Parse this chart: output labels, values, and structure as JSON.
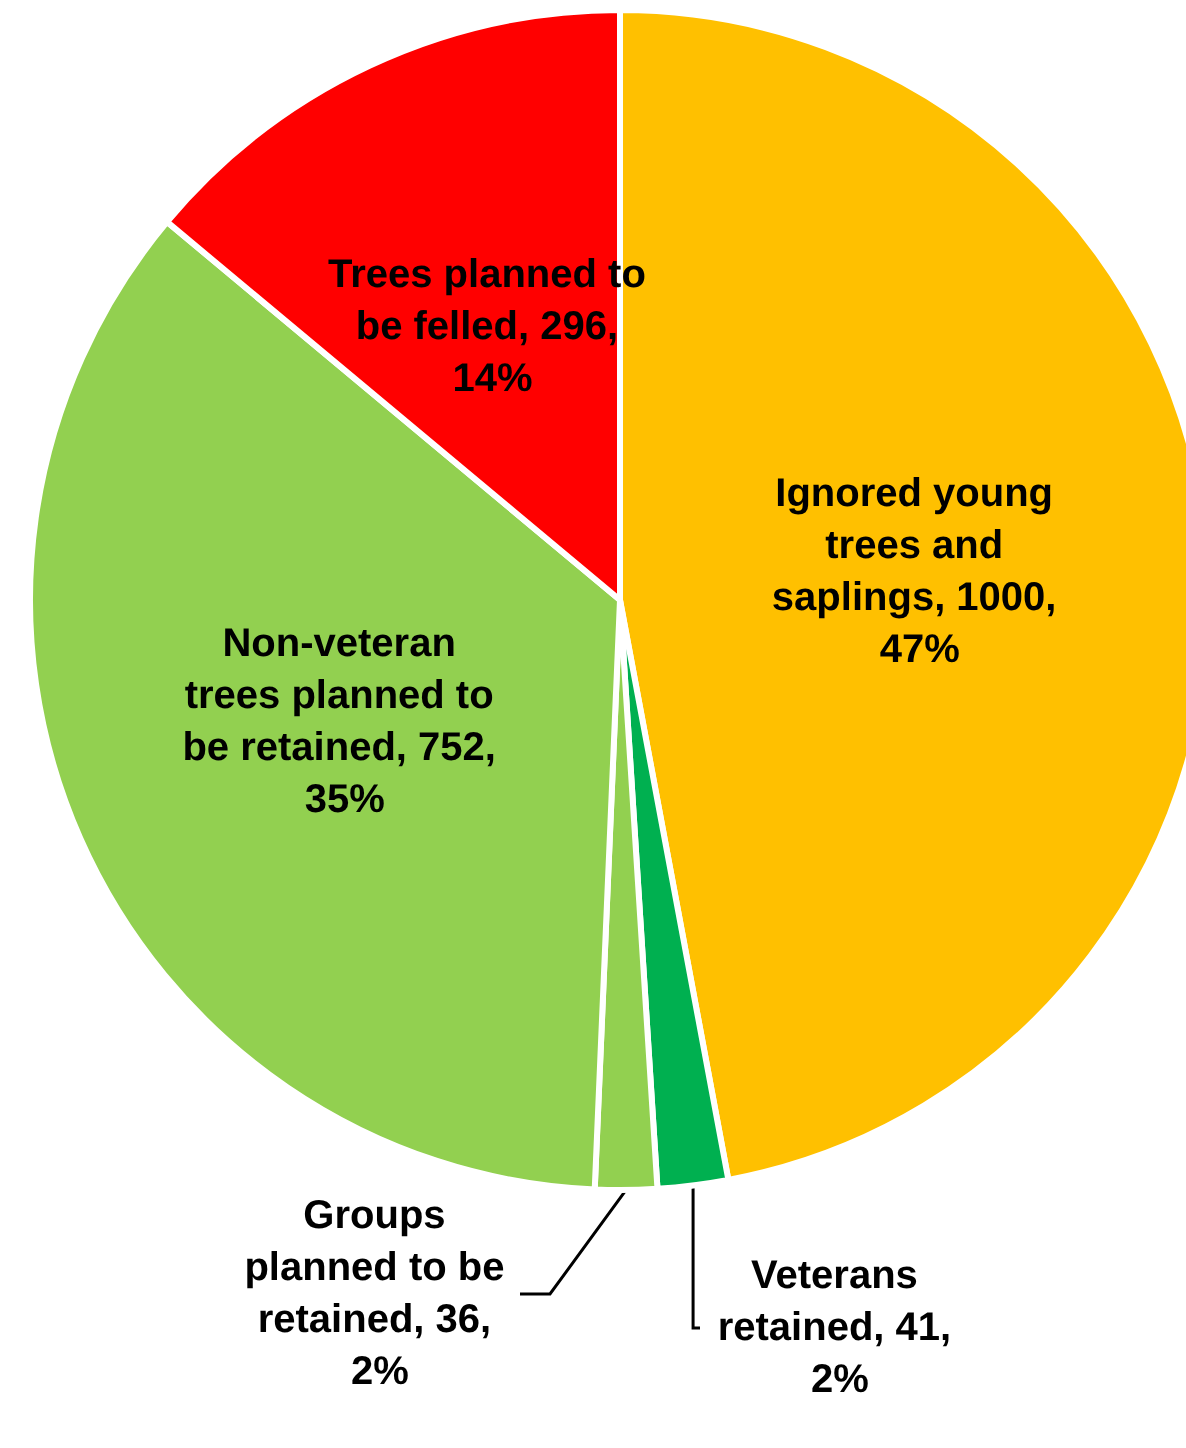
{
  "chart_data": {
    "type": "pie",
    "categories": [
      "Ignored young trees and saplings",
      "Veterans retained",
      "Groups planned to be retained",
      "Non-veteran trees planned to be retained",
      "Trees planned to be felled"
    ],
    "values": [
      1000,
      41,
      36,
      752,
      296
    ],
    "value_labels": [
      "1000, 47%",
      "41, 2%",
      "36, 2%",
      "752, 35%",
      "296, 14%"
    ],
    "colors": [
      "#ffc000",
      "#00b050",
      "#92d050",
      "#92d050",
      "#ff0000"
    ]
  }
}
